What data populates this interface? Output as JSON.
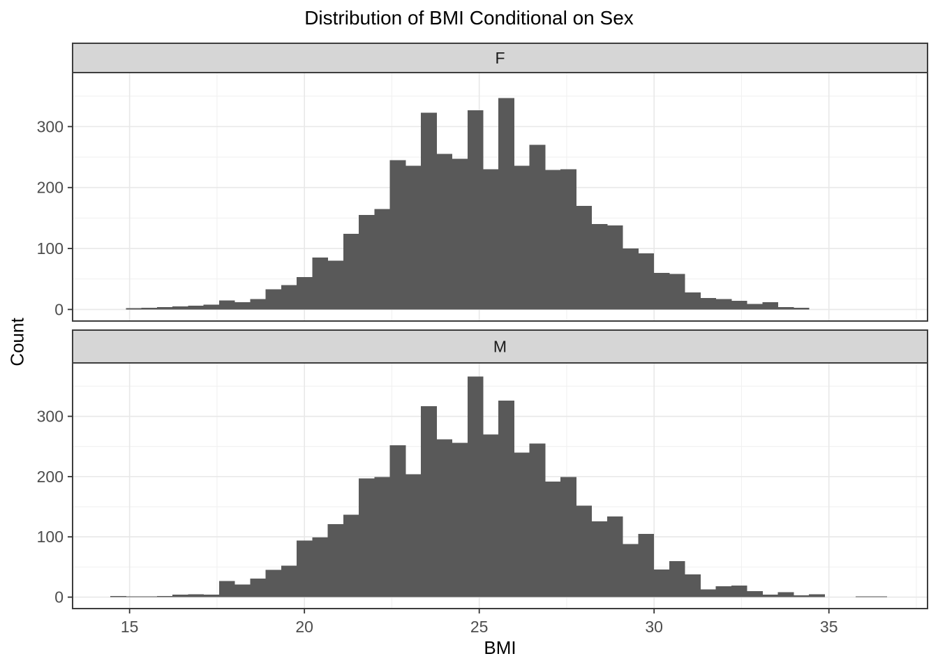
{
  "title": "Distribution of BMI Conditional on Sex",
  "x_axis": {
    "label": "BMI",
    "ticks": [
      15,
      20,
      25,
      30,
      35
    ],
    "minor_ticks": [
      17.5,
      22.5,
      27.5,
      32.5,
      37.5
    ],
    "domain": [
      13.37,
      37.82
    ]
  },
  "y_axis": {
    "label": "Count",
    "ticks": [
      0,
      100,
      200,
      300
    ],
    "minor_ticks": [
      50,
      150,
      250,
      350
    ],
    "domain": [
      -19,
      388.6
    ]
  },
  "colors": {
    "bar": "#595959",
    "strip_bg": "#d6d6d6",
    "panel_bg": "#ffffff",
    "border": "#3d3d3d",
    "grid_major": "#e8e8e8",
    "grid_minor": "#f1f1f1",
    "tick_mark": "#333333",
    "tick_text": "#4d4d4d",
    "title_text": "#000000"
  },
  "chart_data": {
    "type": "bar",
    "subtype": "faceted-histogram",
    "title": "Distribution of BMI Conditional on Sex",
    "xlabel": "BMI",
    "ylabel": "Count",
    "bin_start": 14.45,
    "bin_width": 0.444,
    "xlim": [
      13.37,
      37.82
    ],
    "ylim": [
      -19,
      388.6
    ],
    "grid": true,
    "facets": [
      {
        "label": "F",
        "counts": [
          0,
          2,
          3,
          4,
          5,
          6,
          8,
          15,
          12,
          17,
          33,
          40,
          53,
          85,
          80,
          124,
          155,
          165,
          245,
          236,
          323,
          255,
          247,
          327,
          230,
          347,
          236,
          270,
          229,
          230,
          170,
          140,
          138,
          100,
          92,
          60,
          58,
          28,
          19,
          17,
          14,
          9,
          12,
          4,
          3,
          0,
          0,
          0,
          0,
          0
        ]
      },
      {
        "label": "M",
        "counts": [
          2,
          1,
          1,
          2,
          4,
          5,
          4,
          27,
          21,
          31,
          45,
          52,
          94,
          99,
          121,
          137,
          197,
          199,
          252,
          204,
          317,
          262,
          256,
          366,
          270,
          326,
          240,
          255,
          192,
          199,
          152,
          126,
          134,
          88,
          105,
          46,
          60,
          38,
          13,
          18,
          19,
          10,
          4,
          8,
          3,
          5,
          0,
          0,
          1,
          1
        ]
      }
    ]
  }
}
